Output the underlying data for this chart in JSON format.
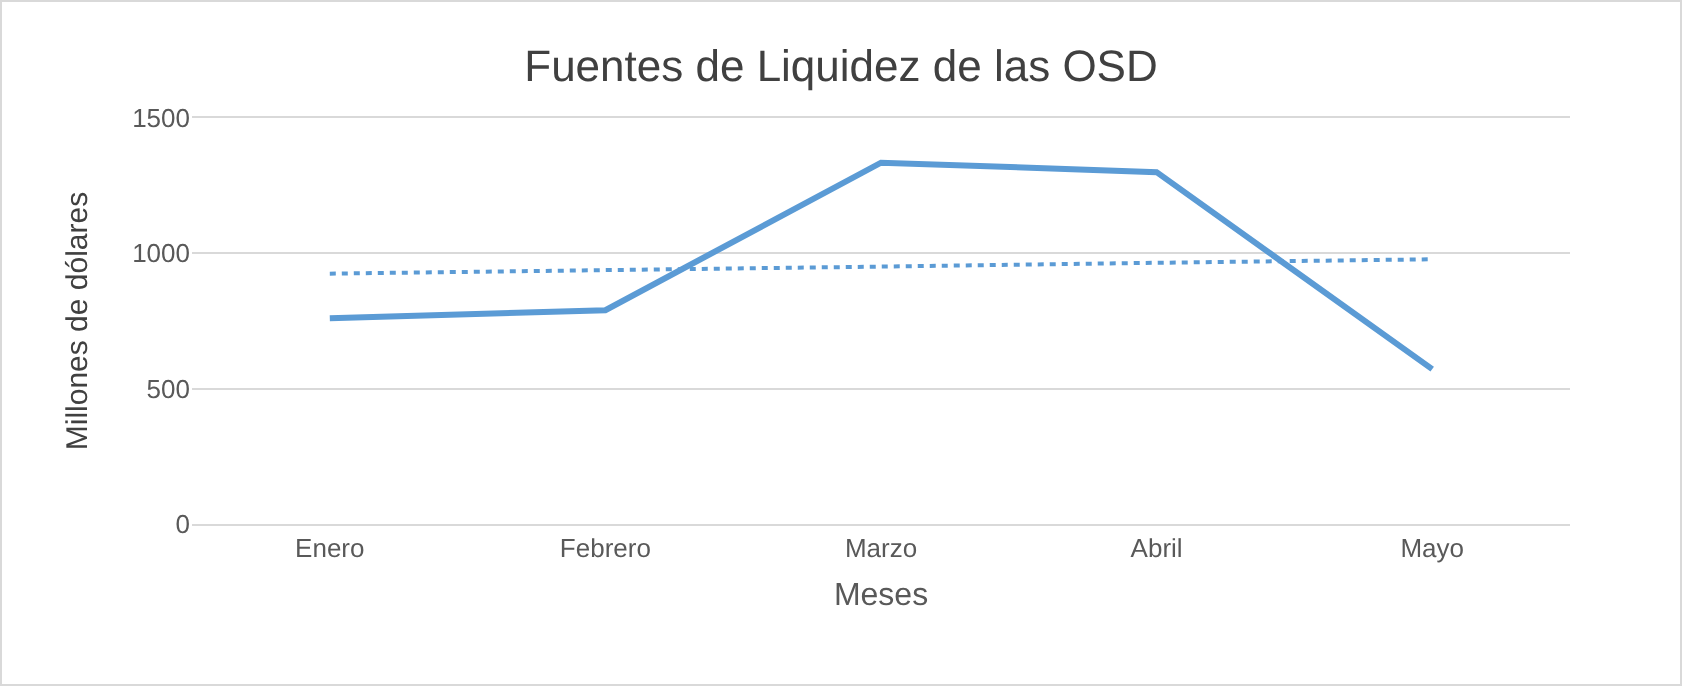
{
  "chart_data": {
    "type": "line",
    "title": "Fuentes de Liquidez de las OSD",
    "xlabel": "Meses",
    "ylabel": "Millones de dólares",
    "categories": [
      "Enero",
      "Febrero",
      "Marzo",
      "Abril",
      "Mayo"
    ],
    "series": [
      {
        "color": "#5b9bd5",
        "values": [
          760,
          790,
          1335,
          1300,
          572
        ],
        "line_style": "solid"
      },
      {
        "type": "line",
        "color": "#5b9bd5",
        "values": [
          925,
          938,
          951,
          965,
          978
        ],
        "line_style": "dotted"
      }
    ],
    "ylim": [
      0,
      1500
    ],
    "yticks": [
      0,
      500,
      1000,
      1500
    ],
    "grid": "y",
    "marker": "none"
  }
}
